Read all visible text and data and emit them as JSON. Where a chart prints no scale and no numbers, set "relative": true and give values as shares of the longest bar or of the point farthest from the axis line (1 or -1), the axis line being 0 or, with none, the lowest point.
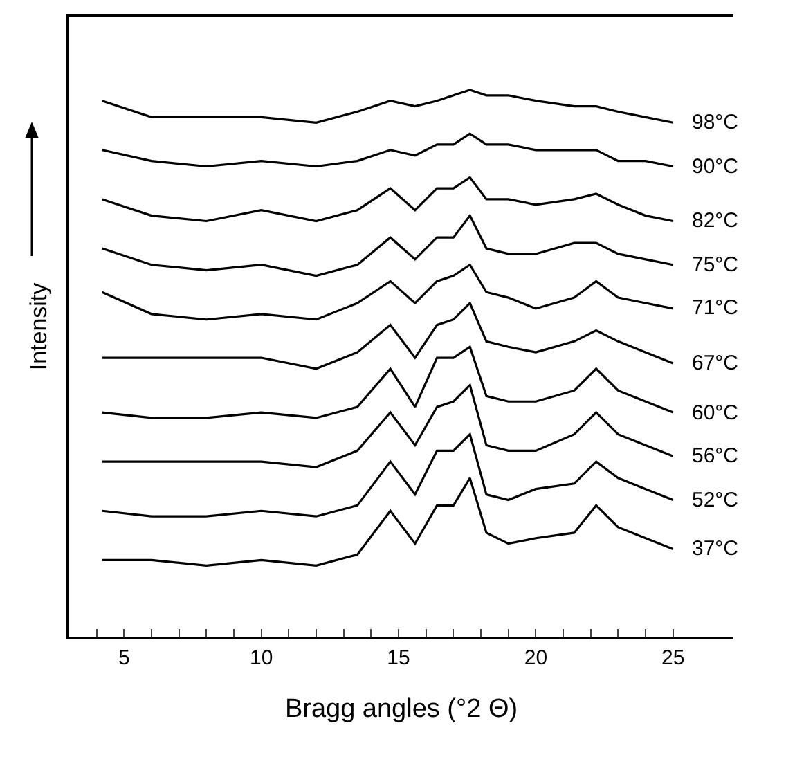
{
  "chart_data": {
    "type": "line",
    "relative": true,
    "xlabel": "Bragg angles (°2 Θ)",
    "ylabel": "Intensity",
    "grid": false,
    "legend": false,
    "marker": "none",
    "line_style": "solid",
    "xlim": [
      3,
      27.2
    ],
    "xticks": [
      {
        "value": 4,
        "label": null
      },
      5,
      {
        "value": 6,
        "label": null
      },
      {
        "value": 7,
        "label": null
      },
      {
        "value": 8,
        "label": null
      },
      {
        "value": 9,
        "label": null
      },
      10,
      {
        "value": 11,
        "label": null
      },
      {
        "value": 12,
        "label": null
      },
      {
        "value": 13,
        "label": null
      },
      {
        "value": 14,
        "label": null
      },
      15,
      {
        "value": 16,
        "label": null
      },
      {
        "value": 17,
        "label": null
      },
      {
        "value": 18,
        "label": null
      },
      {
        "value": 19,
        "label": null
      },
      20,
      {
        "value": 21,
        "label": null
      },
      {
        "value": 22,
        "label": null
      },
      {
        "value": 23,
        "label": null
      },
      {
        "value": 24,
        "label": null
      },
      25
    ],
    "x": [
      4.2,
      6,
      8,
      10,
      12,
      13.5,
      14.7,
      15.6,
      16.4,
      17.0,
      17.6,
      18.2,
      19,
      20,
      21.4,
      22.2,
      23,
      24,
      25
    ],
    "series": [
      {
        "name": "37°C",
        "color": "#000000",
        "values": [
          0.14,
          0.14,
          0.13,
          0.14,
          0.13,
          0.15,
          0.23,
          0.17,
          0.24,
          0.24,
          0.29,
          0.19,
          0.17,
          0.18,
          0.19,
          0.24,
          0.2,
          0.18,
          0.16
        ]
      },
      {
        "name": "52°C",
        "color": "#000000",
        "values": [
          0.23,
          0.22,
          0.22,
          0.23,
          0.22,
          0.24,
          0.32,
          0.26,
          0.34,
          0.34,
          0.37,
          0.26,
          0.25,
          0.27,
          0.28,
          0.32,
          0.29,
          0.27,
          0.25
        ]
      },
      {
        "name": "56°C",
        "color": "#000000",
        "values": [
          0.32,
          0.32,
          0.32,
          0.32,
          0.31,
          0.34,
          0.41,
          0.35,
          0.42,
          0.43,
          0.46,
          0.35,
          0.34,
          0.34,
          0.37,
          0.41,
          0.37,
          0.35,
          0.33
        ]
      },
      {
        "name": "60°C",
        "color": "#000000",
        "values": [
          0.41,
          0.4,
          0.4,
          0.41,
          0.4,
          0.42,
          0.49,
          0.42,
          0.51,
          0.51,
          0.53,
          0.44,
          0.43,
          0.43,
          0.45,
          0.49,
          0.45,
          0.43,
          0.41
        ]
      },
      {
        "name": "67°C",
        "color": "#000000",
        "values": [
          0.51,
          0.51,
          0.51,
          0.51,
          0.49,
          0.52,
          0.57,
          0.51,
          0.57,
          0.58,
          0.61,
          0.54,
          0.53,
          0.52,
          0.54,
          0.56,
          0.54,
          0.52,
          0.5
        ]
      },
      {
        "name": "71°C",
        "color": "#000000",
        "values": [
          0.63,
          0.59,
          0.58,
          0.59,
          0.58,
          0.61,
          0.65,
          0.61,
          0.65,
          0.66,
          0.68,
          0.63,
          0.62,
          0.6,
          0.62,
          0.65,
          0.62,
          0.61,
          0.6
        ]
      },
      {
        "name": "75°C",
        "color": "#000000",
        "values": [
          0.71,
          0.68,
          0.67,
          0.68,
          0.66,
          0.68,
          0.73,
          0.69,
          0.73,
          0.73,
          0.77,
          0.71,
          0.7,
          0.7,
          0.72,
          0.72,
          0.7,
          0.69,
          0.68
        ]
      },
      {
        "name": "82°C",
        "color": "#000000",
        "values": [
          0.8,
          0.77,
          0.76,
          0.78,
          0.76,
          0.78,
          0.82,
          0.78,
          0.82,
          0.82,
          0.84,
          0.8,
          0.8,
          0.79,
          0.8,
          0.81,
          0.79,
          0.77,
          0.76
        ]
      },
      {
        "name": "90°C",
        "color": "#000000",
        "values": [
          0.89,
          0.87,
          0.86,
          0.87,
          0.86,
          0.87,
          0.89,
          0.88,
          0.9,
          0.9,
          0.92,
          0.9,
          0.9,
          0.89,
          0.89,
          0.89,
          0.87,
          0.87,
          0.86
        ]
      },
      {
        "name": "98°C",
        "color": "#000000",
        "values": [
          0.98,
          0.95,
          0.95,
          0.95,
          0.94,
          0.96,
          0.98,
          0.97,
          0.98,
          0.99,
          1.0,
          0.99,
          0.99,
          0.98,
          0.97,
          0.97,
          0.96,
          0.95,
          0.94
        ]
      }
    ]
  }
}
